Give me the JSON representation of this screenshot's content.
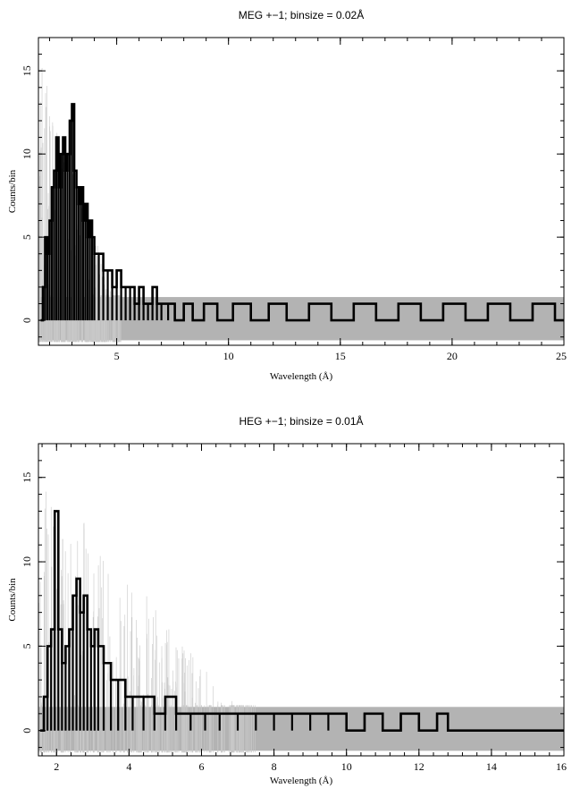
{
  "chart_data": [
    {
      "type": "line",
      "title": "MEG +−1; binsize = 0.02Å",
      "xlabel": "Wavelength (Å)",
      "ylabel": "Counts/bin",
      "xlim": [
        1.5,
        25
      ],
      "ylim": [
        -1.5,
        17
      ],
      "xticks": [
        5,
        10,
        15,
        20,
        25
      ],
      "yticks": [
        0,
        5,
        10,
        15
      ],
      "grid": false,
      "legend": "none",
      "binsize": 0.02,
      "colors": {
        "data": "#000000",
        "error_band": "#b3b3b3"
      },
      "series": [
        {
          "x": [
            1.6,
            1.7,
            1.8,
            1.9,
            2.0,
            2.1,
            2.2,
            2.3,
            2.4,
            2.5,
            2.6,
            2.7,
            2.8,
            2.9,
            3.0,
            3.1,
            3.2,
            3.3,
            3.4,
            3.5,
            3.6,
            3.7,
            3.8,
            3.9,
            4.0,
            4.2,
            4.4,
            4.6,
            4.8,
            5.0,
            5.2,
            5.4,
            5.6,
            5.8,
            6.0,
            6.2,
            6.4,
            6.6,
            6.8,
            7.0,
            7.3,
            7.6,
            8.0,
            8.4,
            8.9,
            9.5,
            10.2,
            11.0,
            11.8,
            12.6,
            13.6,
            14.6,
            15.6,
            16.6,
            17.6,
            18.6,
            19.6,
            20.6,
            21.6,
            22.6,
            23.6,
            24.6,
            25.0
          ],
          "y": [
            0,
            2,
            5,
            4,
            6,
            8,
            9,
            11,
            8,
            10,
            11,
            9,
            10,
            12,
            13,
            9,
            8,
            7,
            8,
            6,
            7,
            5,
            6,
            5,
            4,
            4,
            3,
            3,
            2,
            3,
            2,
            2,
            2,
            1,
            2,
            1,
            1,
            2,
            1,
            1,
            1,
            0,
            1,
            0,
            1,
            0,
            1,
            0,
            1,
            0,
            1,
            0,
            1,
            0,
            1,
            0,
            1,
            0,
            1,
            0,
            1,
            0,
            0
          ],
          "error_band": [
            0,
            1.4
          ]
        }
      ]
    },
    {
      "type": "line",
      "title": "HEG +−1; binsize = 0.01Å",
      "xlabel": "Wavelength (Å)",
      "ylabel": "Counts/bin",
      "xlim": [
        1.5,
        16
      ],
      "ylim": [
        -1.5,
        17
      ],
      "xticks": [
        2,
        4,
        6,
        8,
        10,
        12,
        14,
        16
      ],
      "yticks": [
        0,
        5,
        10,
        15
      ],
      "grid": false,
      "legend": "none",
      "binsize": 0.01,
      "colors": {
        "data": "#000000",
        "error_band": "#b3b3b3"
      },
      "series": [
        {
          "x": [
            1.55,
            1.65,
            1.75,
            1.85,
            1.95,
            2.05,
            2.15,
            2.25,
            2.35,
            2.45,
            2.55,
            2.65,
            2.75,
            2.85,
            2.95,
            3.05,
            3.15,
            3.3,
            3.5,
            3.7,
            3.9,
            4.1,
            4.4,
            4.7,
            5.0,
            5.3,
            5.7,
            6.1,
            6.5,
            7.0,
            7.5,
            8.0,
            8.5,
            9.0,
            9.5,
            10.0,
            10.5,
            11.0,
            11.5,
            12.0,
            12.5,
            12.8,
            13.5,
            14.5,
            15.5,
            16.0
          ],
          "y": [
            0,
            2,
            5,
            6,
            13,
            6,
            4,
            5,
            6,
            8,
            9,
            7,
            8,
            6,
            5,
            6,
            5,
            4,
            3,
            3,
            2,
            2,
            2,
            1,
            2,
            1,
            1,
            1,
            1,
            1,
            1,
            1,
            1,
            1,
            1,
            0,
            1,
            0,
            1,
            0,
            1,
            0,
            0,
            0,
            0,
            0
          ],
          "error_band": [
            0,
            1.4
          ]
        }
      ]
    }
  ]
}
